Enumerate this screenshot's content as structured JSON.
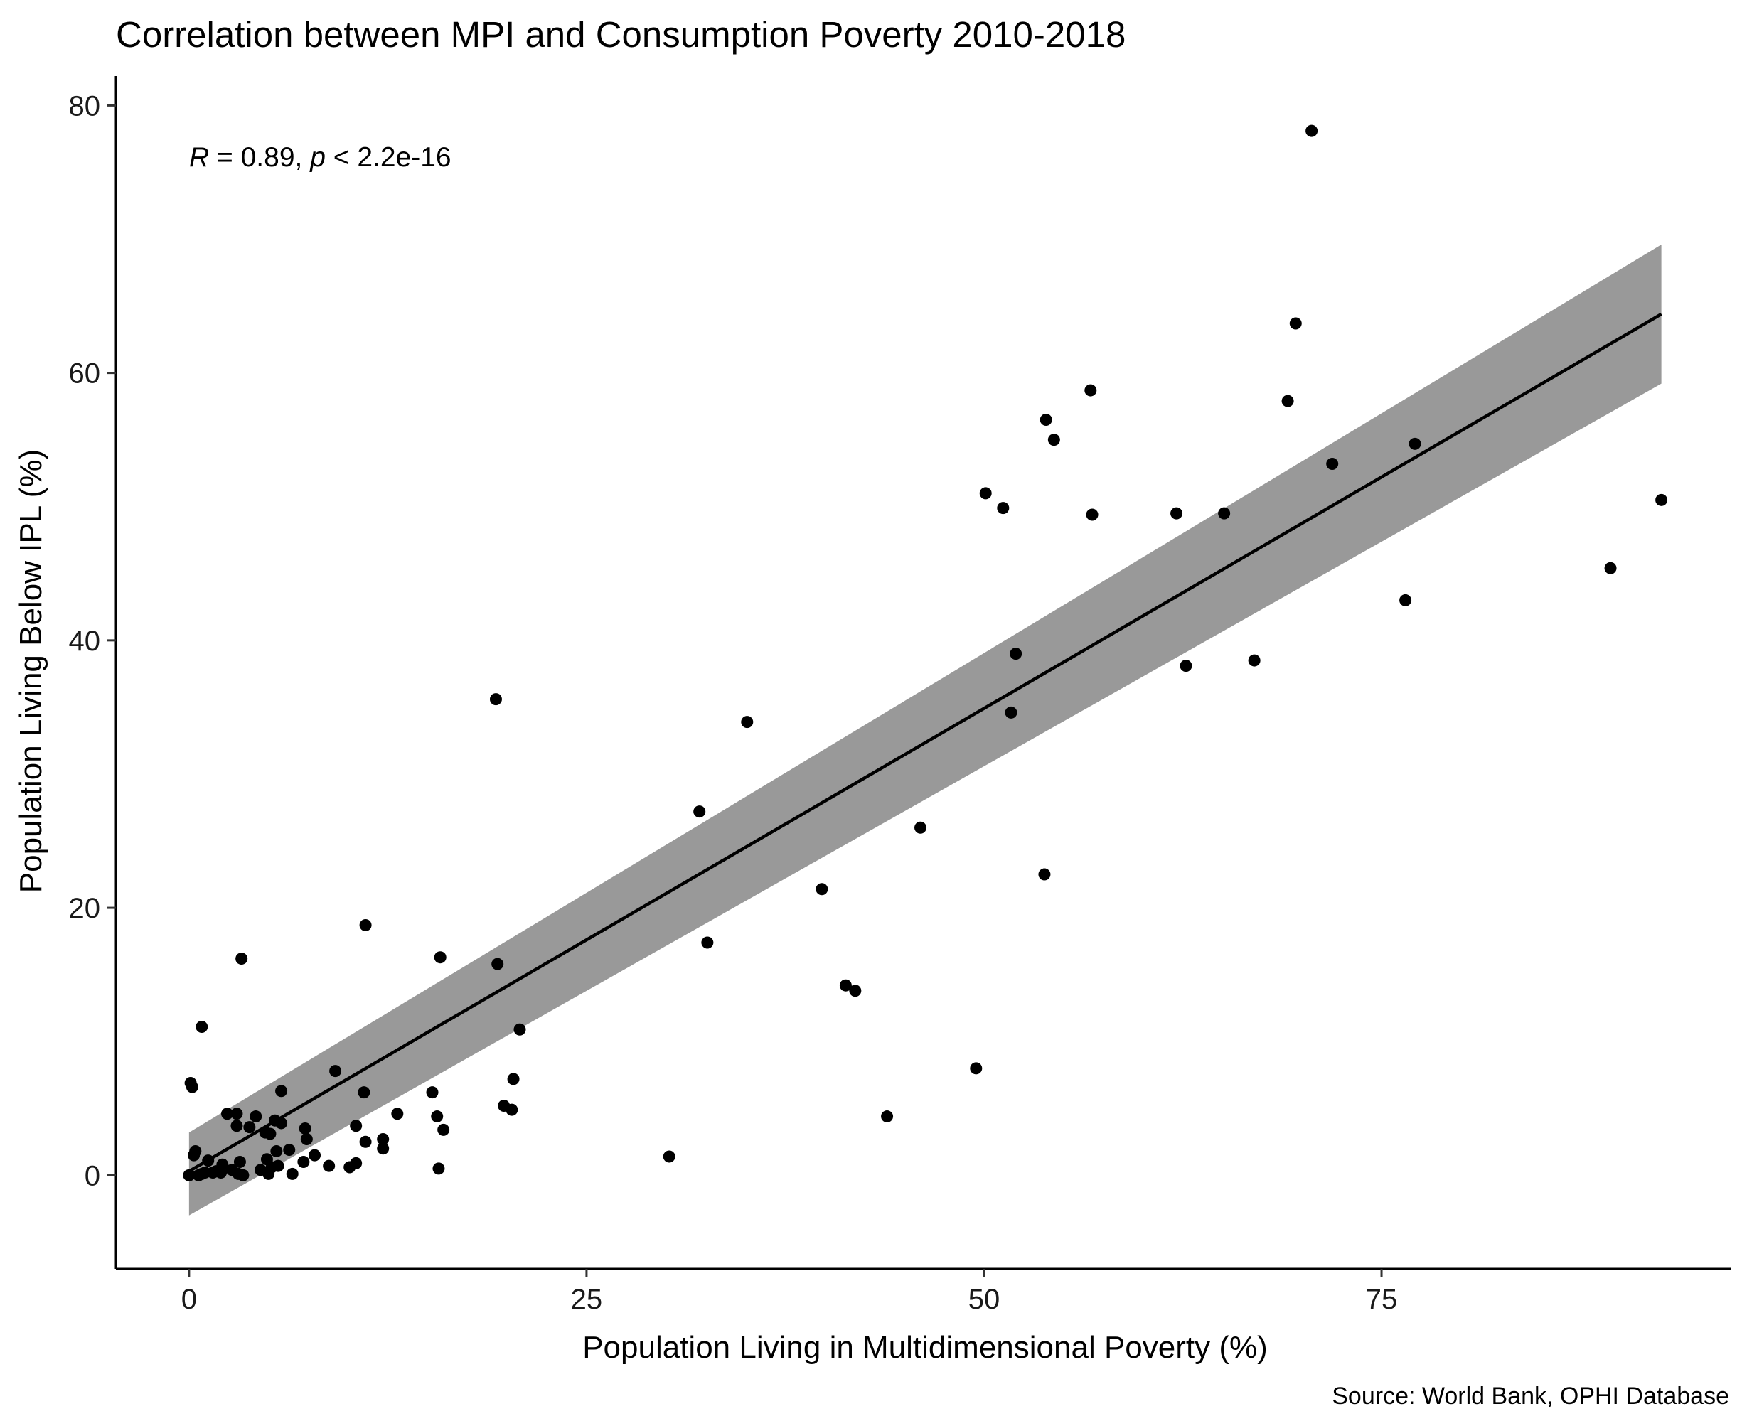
{
  "chart_data": {
    "type": "scatter",
    "title": "Correlation between MPI and Consumption Poverty 2010-2018",
    "xlabel": "Population Living in Multidimensional Poverty (%)",
    "ylabel": "Population Living Below IPL (%)",
    "caption": "Source: World Bank, OPHI Database",
    "annotation": {
      "r_symbol": "R",
      "r_text": " = 0.89, ",
      "p_symbol": "p",
      "p_text": " < 2.2e-16"
    },
    "xlim": [
      -4.6,
      97
    ],
    "ylim": [
      -7,
      82.2
    ],
    "xticks": [
      0,
      25,
      50,
      75
    ],
    "yticks": [
      0,
      20,
      40,
      60,
      80
    ],
    "grid": false,
    "legend": "none",
    "point_color": "#000000",
    "fit_line": {
      "method": "lm",
      "x_range": [
        0,
        92.6
      ],
      "y_at_min": 0.3,
      "y_at_max": 64.4,
      "ci_at_min": [
        -3.0,
        3.2
      ],
      "ci_at_max": [
        59.2,
        69.6
      ],
      "line_color": "#000000",
      "band_color": "#999999"
    },
    "points": [
      {
        "x": 0.0,
        "y": 0.0
      },
      {
        "x": 0.1,
        "y": 6.9
      },
      {
        "x": 0.2,
        "y": 6.6
      },
      {
        "x": 0.3,
        "y": 1.5
      },
      {
        "x": 0.4,
        "y": 1.8
      },
      {
        "x": 0.6,
        "y": 0.0
      },
      {
        "x": 0.8,
        "y": 0.1
      },
      {
        "x": 0.8,
        "y": 11.1
      },
      {
        "x": 1.0,
        "y": 0.2
      },
      {
        "x": 1.2,
        "y": 1.1
      },
      {
        "x": 1.5,
        "y": 0.2
      },
      {
        "x": 1.7,
        "y": 0.3
      },
      {
        "x": 2.0,
        "y": 0.2
      },
      {
        "x": 2.1,
        "y": 0.8
      },
      {
        "x": 2.4,
        "y": 4.6
      },
      {
        "x": 2.7,
        "y": 0.4
      },
      {
        "x": 3.0,
        "y": 4.6
      },
      {
        "x": 3.0,
        "y": 3.7
      },
      {
        "x": 3.1,
        "y": 0.1
      },
      {
        "x": 3.2,
        "y": 1.0
      },
      {
        "x": 3.3,
        "y": 16.2
      },
      {
        "x": 3.4,
        "y": 0.0
      },
      {
        "x": 3.8,
        "y": 3.6
      },
      {
        "x": 4.2,
        "y": 4.4
      },
      {
        "x": 4.5,
        "y": 0.4
      },
      {
        "x": 4.8,
        "y": 3.2
      },
      {
        "x": 4.9,
        "y": 1.2
      },
      {
        "x": 5.0,
        "y": 0.1
      },
      {
        "x": 5.1,
        "y": 3.1
      },
      {
        "x": 5.2,
        "y": 0.6
      },
      {
        "x": 5.4,
        "y": 4.1
      },
      {
        "x": 5.5,
        "y": 1.8
      },
      {
        "x": 5.6,
        "y": 0.7
      },
      {
        "x": 5.8,
        "y": 3.9
      },
      {
        "x": 5.8,
        "y": 6.3
      },
      {
        "x": 6.3,
        "y": 1.9
      },
      {
        "x": 6.5,
        "y": 0.1
      },
      {
        "x": 7.2,
        "y": 1.0
      },
      {
        "x": 7.3,
        "y": 3.5
      },
      {
        "x": 7.4,
        "y": 2.7
      },
      {
        "x": 7.9,
        "y": 1.5
      },
      {
        "x": 8.8,
        "y": 0.7
      },
      {
        "x": 9.2,
        "y": 7.8
      },
      {
        "x": 10.1,
        "y": 0.6
      },
      {
        "x": 10.5,
        "y": 0.9
      },
      {
        "x": 10.5,
        "y": 3.7
      },
      {
        "x": 11.0,
        "y": 6.2
      },
      {
        "x": 11.1,
        "y": 2.5
      },
      {
        "x": 11.1,
        "y": 18.7
      },
      {
        "x": 12.2,
        "y": 2.7
      },
      {
        "x": 12.2,
        "y": 2.0
      },
      {
        "x": 13.1,
        "y": 4.6
      },
      {
        "x": 15.3,
        "y": 6.2
      },
      {
        "x": 15.6,
        "y": 4.4
      },
      {
        "x": 15.7,
        "y": 0.5
      },
      {
        "x": 15.8,
        "y": 16.3
      },
      {
        "x": 16.0,
        "y": 3.4
      },
      {
        "x": 19.3,
        "y": 35.6
      },
      {
        "x": 19.4,
        "y": 15.8
      },
      {
        "x": 19.8,
        "y": 5.2
      },
      {
        "x": 20.3,
        "y": 4.9
      },
      {
        "x": 20.4,
        "y": 7.2
      },
      {
        "x": 20.8,
        "y": 10.9
      },
      {
        "x": 30.2,
        "y": 1.4
      },
      {
        "x": 32.1,
        "y": 27.2
      },
      {
        "x": 32.6,
        "y": 17.4
      },
      {
        "x": 35.1,
        "y": 33.9
      },
      {
        "x": 39.8,
        "y": 21.4
      },
      {
        "x": 41.3,
        "y": 14.2
      },
      {
        "x": 41.9,
        "y": 13.8
      },
      {
        "x": 43.9,
        "y": 4.4
      },
      {
        "x": 46.0,
        "y": 26.0
      },
      {
        "x": 49.5,
        "y": 8.0
      },
      {
        "x": 50.1,
        "y": 51.0
      },
      {
        "x": 51.2,
        "y": 49.9
      },
      {
        "x": 51.7,
        "y": 34.6
      },
      {
        "x": 52.0,
        "y": 39.0
      },
      {
        "x": 53.8,
        "y": 22.5
      },
      {
        "x": 53.9,
        "y": 56.5
      },
      {
        "x": 54.4,
        "y": 55.0
      },
      {
        "x": 56.7,
        "y": 58.7
      },
      {
        "x": 56.8,
        "y": 49.4
      },
      {
        "x": 62.1,
        "y": 49.5
      },
      {
        "x": 62.7,
        "y": 38.1
      },
      {
        "x": 65.1,
        "y": 49.5
      },
      {
        "x": 67.0,
        "y": 38.5
      },
      {
        "x": 69.1,
        "y": 57.9
      },
      {
        "x": 69.6,
        "y": 63.7
      },
      {
        "x": 70.6,
        "y": 78.1
      },
      {
        "x": 71.9,
        "y": 53.2
      },
      {
        "x": 76.5,
        "y": 43.0
      },
      {
        "x": 77.1,
        "y": 54.7
      },
      {
        "x": 89.4,
        "y": 45.4
      },
      {
        "x": 92.6,
        "y": 50.5
      }
    ]
  }
}
